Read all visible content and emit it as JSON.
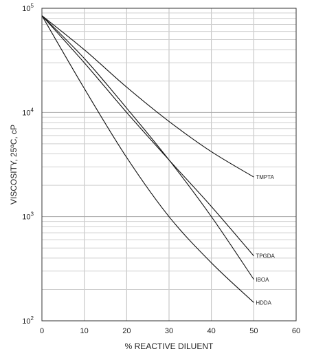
{
  "chart_data": {
    "type": "line",
    "title": "",
    "xlabel": "% REACTIVE DILUENT",
    "ylabel": "VISCOSITY, 25ºC, cP",
    "x_scale": "linear",
    "y_scale": "log",
    "xlim": [
      0,
      60
    ],
    "ylim": [
      100,
      100000
    ],
    "x_ticks": [
      "0",
      "10",
      "20",
      "30",
      "40",
      "50",
      "60"
    ],
    "y_ticks": [
      {
        "base": "10",
        "exp": "2"
      },
      {
        "base": "10",
        "exp": "3"
      },
      {
        "base": "10",
        "exp": "4"
      },
      {
        "base": "10",
        "exp": "5"
      }
    ],
    "grid": true,
    "series": [
      {
        "name": "TMPTA",
        "x": [
          0,
          10,
          20,
          30,
          40,
          50
        ],
        "y": [
          85000,
          40000,
          17500,
          8200,
          4200,
          2400
        ]
      },
      {
        "name": "TPGDA",
        "x": [
          0,
          10,
          20,
          30,
          40,
          50
        ],
        "y": [
          85000,
          30000,
          10000,
          3500,
          1250,
          420
        ]
      },
      {
        "name": "IBOA",
        "x": [
          0,
          10,
          20,
          30,
          40,
          50
        ],
        "y": [
          85000,
          33000,
          11000,
          3500,
          1000,
          250
        ]
      },
      {
        "name": "HDDA",
        "x": [
          0,
          10,
          20,
          30,
          40,
          50
        ],
        "y": [
          85000,
          17000,
          3700,
          1000,
          360,
          150
        ]
      }
    ]
  }
}
